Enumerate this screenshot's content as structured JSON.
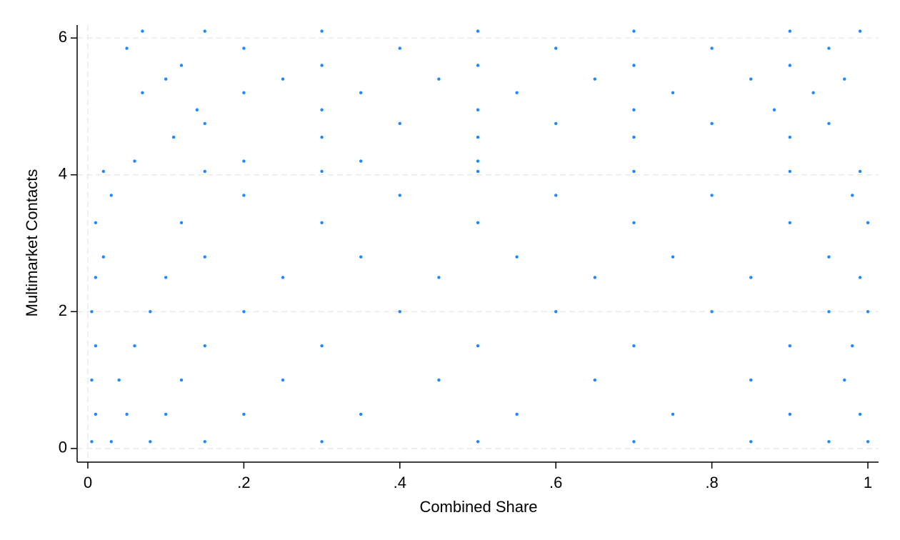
{
  "chart_data": {
    "type": "scatter",
    "x_label": "Combined Share",
    "y_label": "Multimarket Contacts",
    "color": "#1e88ff",
    "xlim": [
      -0.0137,
      1.0137
    ],
    "xticks": [
      0,
      {
        "value": 0.2,
        "label": ".2"
      },
      {
        "value": 0.4,
        "label": ".4"
      },
      {
        "value": 0.6,
        "label": ".6"
      },
      {
        "value": 0.8,
        "label": ".8"
      },
      1
    ],
    "ylim": [
      -0.2,
      6.19
    ],
    "yticks": [
      0,
      2,
      4,
      6
    ],
    "grid": true,
    "x": [
      0.07,
      0.15,
      0.3,
      0.5,
      0.7,
      0.9,
      0.99,
      0.05,
      0.2,
      0.4,
      0.6,
      0.8,
      0.95,
      0.12,
      0.3,
      0.5,
      0.7,
      0.9,
      0.1,
      0.25,
      0.45,
      0.65,
      0.85,
      0.97,
      0.07,
      0.2,
      0.35,
      0.55,
      0.75,
      0.93,
      0.14,
      0.3,
      0.5,
      0.7,
      0.88,
      0.15,
      0.4,
      0.6,
      0.8,
      0.95,
      0.11,
      0.3,
      0.5,
      0.7,
      0.9,
      0.06,
      0.2,
      0.35,
      0.5,
      0.02,
      0.15,
      0.3,
      0.5,
      0.7,
      0.9,
      0.99,
      0.03,
      0.2,
      0.4,
      0.6,
      0.8,
      0.98,
      0.01,
      0.12,
      0.3,
      0.5,
      0.7,
      0.9,
      1,
      0.02,
      0.15,
      0.35,
      0.55,
      0.75,
      0.95,
      0.01,
      0.1,
      0.25,
      0.45,
      0.65,
      0.85,
      0.99,
      0.005,
      0.08,
      0.2,
      0.4,
      0.6,
      0.8,
      0.95,
      1,
      0.01,
      0.06,
      0.15,
      0.3,
      0.5,
      0.7,
      0.9,
      0.98,
      0.005,
      0.04,
      0.12,
      0.25,
      0.45,
      0.65,
      0.85,
      0.97,
      0.01,
      0.05,
      0.1,
      0.2,
      0.35,
      0.55,
      0.75,
      0.9,
      0.99,
      0.005,
      0.03,
      0.08,
      0.15,
      0.3,
      0.5,
      0.7,
      0.85,
      0.95,
      1
    ],
    "values": [
      6.1,
      6.1,
      6.1,
      6.1,
      6.1,
      6.1,
      6.1,
      5.85,
      5.85,
      5.85,
      5.85,
      5.85,
      5.85,
      5.6,
      5.6,
      5.6,
      5.6,
      5.6,
      5.4,
      5.4,
      5.4,
      5.4,
      5.4,
      5.4,
      5.2,
      5.2,
      5.2,
      5.2,
      5.2,
      5.2,
      4.95,
      4.95,
      4.95,
      4.95,
      4.95,
      4.75,
      4.75,
      4.75,
      4.75,
      4.75,
      4.55,
      4.55,
      4.55,
      4.55,
      4.55,
      4.2,
      4.2,
      4.2,
      4.2,
      4.05,
      4.05,
      4.05,
      4.05,
      4.05,
      4.05,
      4.05,
      3.7,
      3.7,
      3.7,
      3.7,
      3.7,
      3.7,
      3.3,
      3.3,
      3.3,
      3.3,
      3.3,
      3.3,
      3.3,
      2.8,
      2.8,
      2.8,
      2.8,
      2.8,
      2.8,
      2.5,
      2.5,
      2.5,
      2.5,
      2.5,
      2.5,
      2.5,
      2,
      2,
      2,
      2,
      2,
      2,
      2,
      2,
      1.5,
      1.5,
      1.5,
      1.5,
      1.5,
      1.5,
      1.5,
      1.5,
      1,
      1,
      1,
      1,
      1,
      1,
      1,
      1,
      0.5,
      0.5,
      0.5,
      0.5,
      0.5,
      0.5,
      0.5,
      0.5,
      0.5,
      0.1,
      0.1,
      0.1,
      0.1,
      0.1,
      0.1,
      0.1,
      0.1,
      0.1,
      0.1
    ]
  }
}
